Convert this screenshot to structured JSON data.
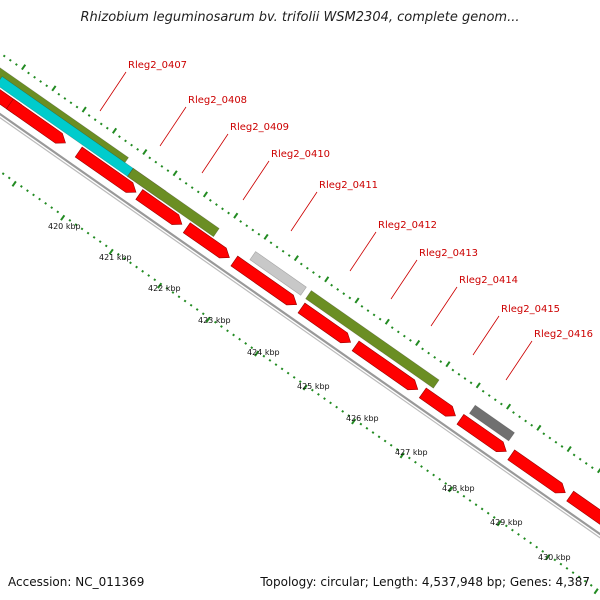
{
  "title": "Rhizobium leguminosarum bv. trifolii WSM2304, complete genom...",
  "footer": {
    "accession": "Accession: NC_011369",
    "topology": "Topology: circular; Length: 4,537,948 bp; Genes: 4,387"
  },
  "gene_labels": [
    "Rleg2_0407",
    "Rleg2_0408",
    "Rleg2_0409",
    "Rleg2_0410",
    "Rleg2_0411",
    "Rleg2_0412",
    "Rleg2_0413",
    "Rleg2_0414",
    "Rleg2_0415",
    "Rleg2_0416"
  ],
  "scale_labels": [
    "420 kbp",
    "421 kbp",
    "422 kbp",
    "423 kbp",
    "424 kbp",
    "425 kbp",
    "426 kbp",
    "427 kbp",
    "428 kbp",
    "429 kbp",
    "430 kbp"
  ],
  "colors": {
    "cds": "#ff0000",
    "cog_green": "#6b8e23",
    "cog_cyan": "#00cccc",
    "cog_pink": "#f08080",
    "cog_lightgray": "#c8c8c8",
    "cog_darkgray": "#707070",
    "backbone": "#999999",
    "ticks": "#228b22",
    "label_text": "#cc0000"
  }
}
